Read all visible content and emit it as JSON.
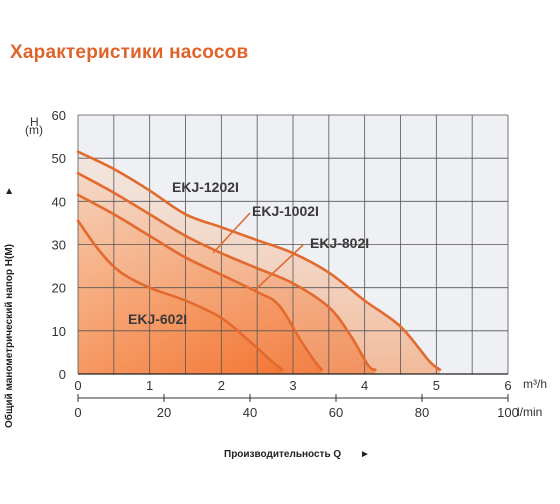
{
  "page": {
    "title": "Характеристики насосов"
  },
  "colors": {
    "accent": "#e0632a",
    "curve": "#e36a2e",
    "grid": "#555555",
    "plot_bg": "#eef0f4",
    "fill": "#f47a3a"
  },
  "chart_data": {
    "type": "line",
    "x_unit_top": "m³/h",
    "x_unit_bottom": "l/min",
    "y_unit": "(m)",
    "y_unit_letter": "H",
    "ylabel": "Общий манометрический напор H(M)",
    "ylabel_arrow": "►",
    "xlabel": "Производительность Q",
    "xlabel_arrow": "►",
    "xlim": [
      0,
      6
    ],
    "ylim": [
      0,
      60
    ],
    "x_ticks": [
      "0",
      "1",
      "2",
      "3",
      "4",
      "5",
      "6"
    ],
    "x_ticks_lmin": [
      "0",
      "20",
      "40",
      "60",
      "80",
      "100"
    ],
    "y_ticks": [
      "0",
      "10",
      "20",
      "30",
      "40",
      "50",
      "60"
    ],
    "grid": true,
    "series": [
      {
        "name": "EKJ-1202I",
        "points": [
          [
            0,
            51.5
          ],
          [
            0.5,
            47.5
          ],
          [
            1,
            42.5
          ],
          [
            1.5,
            37
          ],
          [
            2,
            34
          ],
          [
            2.5,
            31
          ],
          [
            3,
            28
          ],
          [
            3.5,
            23.5
          ],
          [
            4,
            17
          ],
          [
            4.5,
            11
          ],
          [
            4.9,
            3
          ],
          [
            5.05,
            1
          ]
        ]
      },
      {
        "name": "EKJ-1002I",
        "points": [
          [
            0,
            46.5
          ],
          [
            0.5,
            42
          ],
          [
            1,
            37
          ],
          [
            1.5,
            32
          ],
          [
            2,
            28
          ],
          [
            2.5,
            24.5
          ],
          [
            3,
            21
          ],
          [
            3.5,
            15.5
          ],
          [
            3.8,
            9
          ],
          [
            4.05,
            2
          ],
          [
            4.15,
            1
          ]
        ]
      },
      {
        "name": "EKJ-802I",
        "points": [
          [
            0,
            41.5
          ],
          [
            0.5,
            37
          ],
          [
            1,
            32
          ],
          [
            1.5,
            27
          ],
          [
            2,
            23
          ],
          [
            2.5,
            19
          ],
          [
            2.8,
            16
          ],
          [
            3.1,
            8
          ],
          [
            3.3,
            3
          ],
          [
            3.4,
            1
          ]
        ]
      },
      {
        "name": "EKJ-602I",
        "points": [
          [
            0,
            35.5
          ],
          [
            0.3,
            28.5
          ],
          [
            0.6,
            23.5
          ],
          [
            1,
            20
          ],
          [
            1.5,
            17
          ],
          [
            2,
            13
          ],
          [
            2.4,
            7.5
          ],
          [
            2.7,
            3
          ],
          [
            2.85,
            1
          ]
        ]
      }
    ],
    "labels": [
      {
        "text": "EKJ-1202I",
        "series": "EKJ-1202I"
      },
      {
        "text": "EKJ-1002I",
        "series": "EKJ-1002I"
      },
      {
        "text": "EKJ-802I",
        "series": "EKJ-802I"
      },
      {
        "text": "EKJ-602I",
        "series": "EKJ-602I"
      }
    ]
  }
}
